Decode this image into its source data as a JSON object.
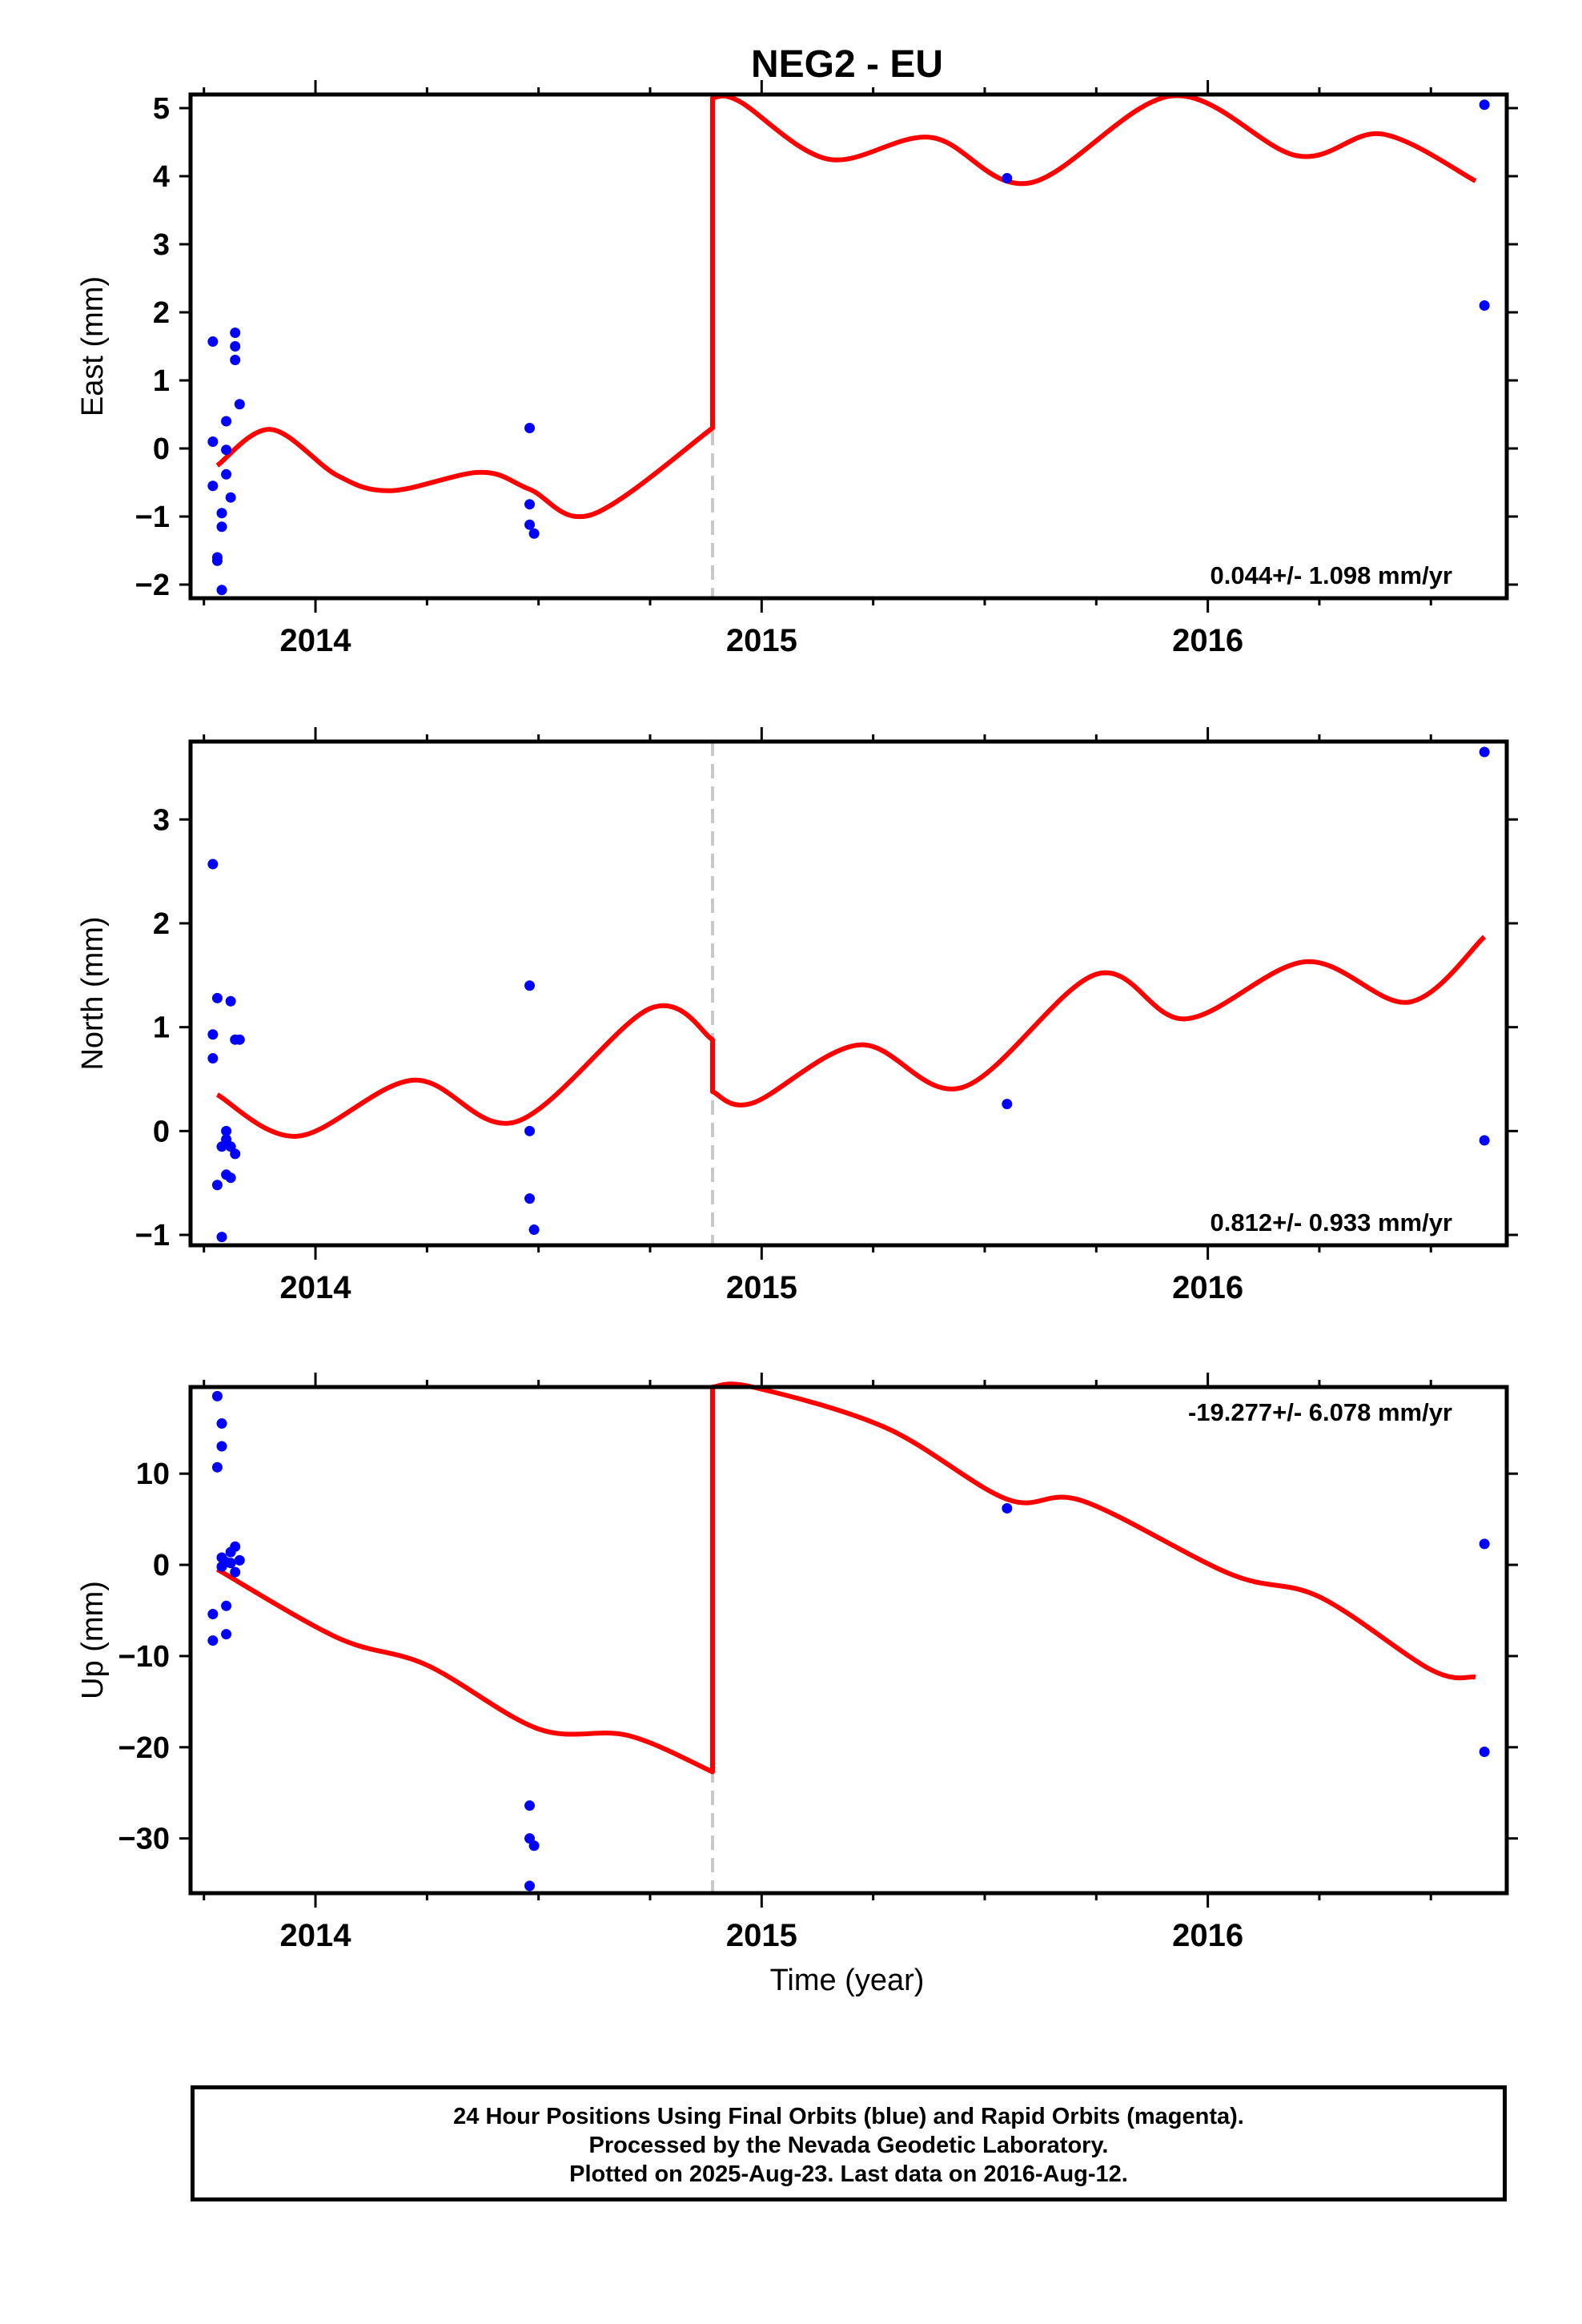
{
  "title": "NEG2 - EU",
  "xlabel": "Time (year)",
  "xticks": [
    "2014",
    "2015",
    "2016"
  ],
  "colors": {
    "data": "#0000ff",
    "model": "#ff0000",
    "offset": "#c8c8c8",
    "frame": "#000000"
  },
  "footer": {
    "line1": "24 Hour Positions Using Final Orbits (blue) and Rapid Orbits (magenta).",
    "line2": "Processed by the Nevada Geodetic Laboratory.",
    "line3": "Plotted on 2025-Aug-23. Last data on 2016-Aug-12."
  },
  "chart_data": [
    {
      "type": "scatter",
      "ylabel": "East (mm)",
      "rate": "0.044+/- 1.098 mm/yr",
      "xlim": [
        2013.72,
        2016.67
      ],
      "ylim": [
        -2.2,
        5.2
      ],
      "yticks": [
        -2,
        -1,
        0,
        1,
        2,
        3,
        4,
        5
      ],
      "offset_x": 2014.89,
      "points": [
        [
          2013.77,
          1.57
        ],
        [
          2013.77,
          0.1
        ],
        [
          2013.77,
          -0.55
        ],
        [
          2013.78,
          -1.6
        ],
        [
          2013.78,
          -1.65
        ],
        [
          2013.79,
          -0.95
        ],
        [
          2013.79,
          -2.08
        ],
        [
          2013.79,
          -1.15
        ],
        [
          2013.8,
          0.4
        ],
        [
          2013.8,
          -0.38
        ],
        [
          2013.8,
          -0.02
        ],
        [
          2013.81,
          -0.72
        ],
        [
          2013.82,
          1.7
        ],
        [
          2013.82,
          1.5
        ],
        [
          2013.82,
          1.3
        ],
        [
          2013.83,
          0.65
        ],
        [
          2014.48,
          0.3
        ],
        [
          2014.48,
          -0.82
        ],
        [
          2014.48,
          -1.12
        ],
        [
          2014.49,
          -1.25
        ],
        [
          2015.55,
          3.97
        ],
        [
          2016.62,
          5.05
        ],
        [
          2016.62,
          2.1
        ]
      ],
      "model": [
        [
          2013.78,
          -0.25
        ],
        [
          2013.9,
          0.28
        ],
        [
          2014.05,
          -0.4
        ],
        [
          2014.17,
          -0.62
        ],
        [
          2014.37,
          -0.35
        ],
        [
          2014.48,
          -0.6
        ],
        [
          2014.62,
          -0.97
        ],
        [
          2014.89,
          0.3
        ],
        [
          2014.89,
          5.15
        ],
        [
          2014.95,
          5.1
        ],
        [
          2015.15,
          4.25
        ],
        [
          2015.38,
          4.57
        ],
        [
          2015.6,
          3.9
        ],
        [
          2015.92,
          5.18
        ],
        [
          2016.2,
          4.3
        ],
        [
          2016.39,
          4.62
        ],
        [
          2016.6,
          3.93
        ]
      ]
    },
    {
      "type": "scatter",
      "ylabel": "North (mm)",
      "rate": "0.812+/- 0.933 mm/yr",
      "xlim": [
        2013.72,
        2016.67
      ],
      "ylim": [
        -1.1,
        3.75
      ],
      "yticks": [
        -1,
        0,
        1,
        2,
        3
      ],
      "offset_x": 2014.89,
      "points": [
        [
          2013.77,
          2.57
        ],
        [
          2013.77,
          0.93
        ],
        [
          2013.77,
          0.7
        ],
        [
          2013.78,
          1.28
        ],
        [
          2013.78,
          -0.52
        ],
        [
          2013.79,
          -1.02
        ],
        [
          2013.79,
          -0.15
        ],
        [
          2013.8,
          0.0
        ],
        [
          2013.8,
          -0.08
        ],
        [
          2013.8,
          -0.42
        ],
        [
          2013.81,
          -0.15
        ],
        [
          2013.81,
          -0.45
        ],
        [
          2013.81,
          1.25
        ],
        [
          2013.82,
          0.88
        ],
        [
          2013.82,
          -0.22
        ],
        [
          2013.83,
          0.88
        ],
        [
          2014.48,
          1.4
        ],
        [
          2014.48,
          0.0
        ],
        [
          2014.48,
          -0.65
        ],
        [
          2014.49,
          -0.95
        ],
        [
          2015.55,
          0.26
        ],
        [
          2016.62,
          3.65
        ],
        [
          2016.62,
          -0.09
        ]
      ],
      "model": [
        [
          2013.78,
          0.35
        ],
        [
          2013.96,
          -0.05
        ],
        [
          2014.22,
          0.49
        ],
        [
          2014.45,
          0.09
        ],
        [
          2014.75,
          1.18
        ],
        [
          2014.89,
          0.88
        ],
        [
          2014.89,
          0.38
        ],
        [
          2014.98,
          0.27
        ],
        [
          2015.22,
          0.83
        ],
        [
          2015.45,
          0.42
        ],
        [
          2015.75,
          1.51
        ],
        [
          2015.95,
          1.08
        ],
        [
          2016.22,
          1.63
        ],
        [
          2016.45,
          1.24
        ],
        [
          2016.62,
          1.87
        ]
      ]
    },
    {
      "type": "scatter",
      "ylabel": "Up (mm)",
      "rate": "-19.277+/- 6.078 mm/yr",
      "xlim": [
        2013.72,
        2016.67
      ],
      "ylim": [
        -36.0,
        19.5
      ],
      "yticks": [
        -30,
        -20,
        -10,
        0,
        10
      ],
      "offset_x": 2014.89,
      "points": [
        [
          2013.78,
          18.5
        ],
        [
          2013.79,
          15.5
        ],
        [
          2013.79,
          13.0
        ],
        [
          2013.78,
          10.7
        ],
        [
          2013.77,
          -5.4
        ],
        [
          2013.77,
          -8.3
        ],
        [
          2013.8,
          -7.6
        ],
        [
          2013.8,
          -4.5
        ],
        [
          2013.79,
          0.8
        ],
        [
          2013.8,
          0.3
        ],
        [
          2013.81,
          1.4
        ],
        [
          2013.81,
          0.2
        ],
        [
          2013.82,
          2.0
        ],
        [
          2013.82,
          -0.8
        ],
        [
          2013.83,
          0.5
        ],
        [
          2013.79,
          -0.2
        ],
        [
          2014.48,
          -26.4
        ],
        [
          2014.48,
          -30.0
        ],
        [
          2014.49,
          -30.8
        ],
        [
          2014.48,
          -35.2
        ],
        [
          2015.55,
          6.2
        ],
        [
          2016.62,
          2.3
        ],
        [
          2016.62,
          -20.5
        ]
      ],
      "model": [
        [
          2013.78,
          -0.5
        ],
        [
          2014.05,
          -8.0
        ],
        [
          2014.25,
          -11.0
        ],
        [
          2014.5,
          -18.0
        ],
        [
          2014.7,
          -18.7
        ],
        [
          2014.89,
          -22.7
        ],
        [
          2014.89,
          19.5
        ],
        [
          2014.98,
          19.5
        ],
        [
          2015.28,
          15.0
        ],
        [
          2015.55,
          7.2
        ],
        [
          2015.72,
          7.0
        ],
        [
          2016.05,
          -1.0
        ],
        [
          2016.25,
          -3.5
        ],
        [
          2016.5,
          -11.5
        ],
        [
          2016.6,
          -12.3
        ]
      ]
    }
  ]
}
